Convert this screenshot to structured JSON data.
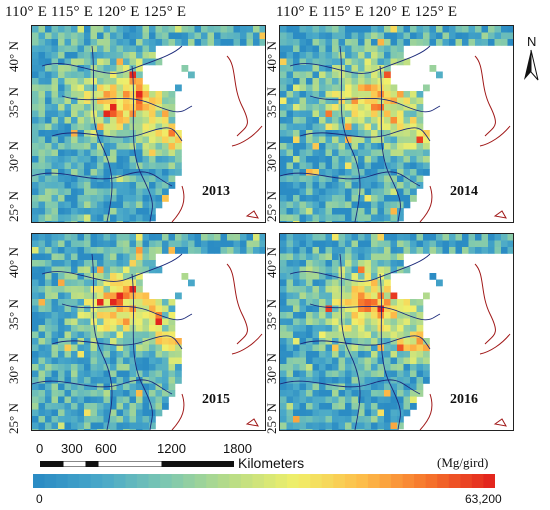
{
  "lon_tick_labels": [
    "110° E",
    "115° E",
    "120° E",
    "125° E"
  ],
  "lat_tick_labels": [
    "25° N",
    "30° N",
    "35° N",
    "40° N"
  ],
  "panels": [
    {
      "year": "2013",
      "seed": 1
    },
    {
      "year": "2014",
      "seed": 2
    },
    {
      "year": "2015",
      "seed": 3
    },
    {
      "year": "2016",
      "seed": 4
    }
  ],
  "north_arrow": {
    "letter": "N",
    "icon": "north-arrow-icon"
  },
  "scale_bar": {
    "ticks": [
      "0",
      "300",
      "600",
      "1200",
      "1800"
    ],
    "unit": "Kilometers"
  },
  "legend": {
    "title": "(Mg/gird)",
    "min_label": "0",
    "max_label": "63,200",
    "color_stops": [
      "#2b8cc4",
      "#4aa9c9",
      "#7ec8b0",
      "#b9dd86",
      "#f0ef6a",
      "#fdbf4b",
      "#f7782d",
      "#e3261d"
    ]
  },
  "colors": {
    "land_low": "#3a9ac9",
    "ocean": "#ffffff",
    "province_border": "#1c2a7a",
    "coast_outline": "#a01818"
  }
}
